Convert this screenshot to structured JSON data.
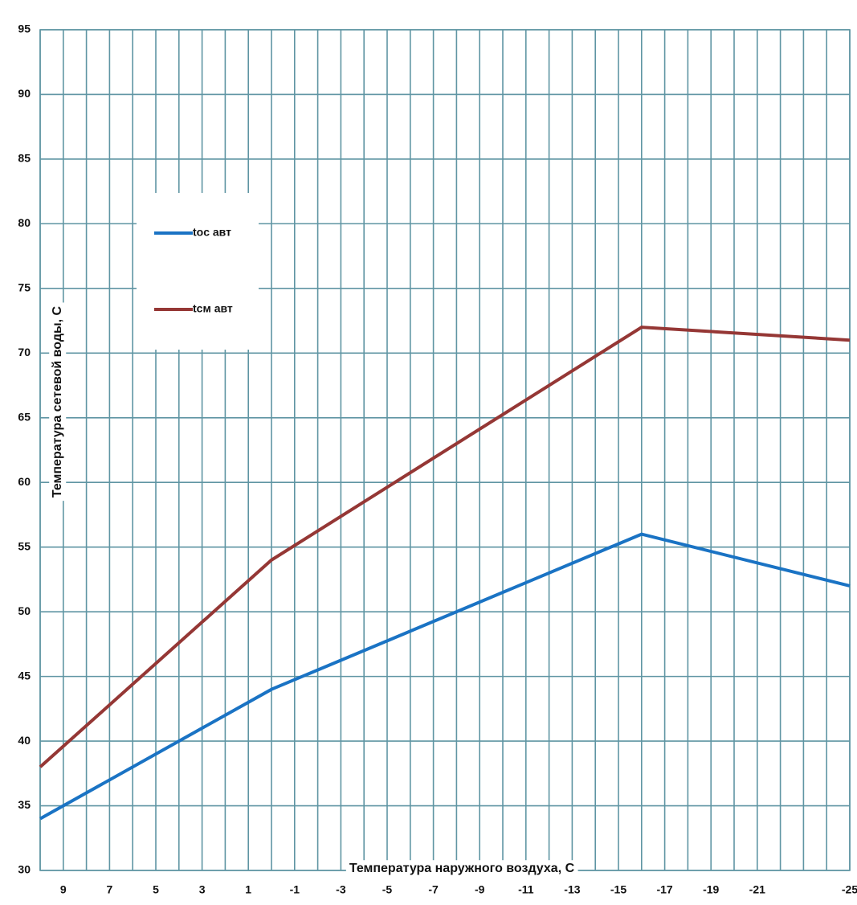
{
  "chart_data": {
    "type": "line",
    "xlabel": "Температура наружного воздуха, С",
    "ylabel": "Температура сетевой воды, С",
    "xlim": [
      10,
      -25
    ],
    "xticks": [
      9,
      7,
      5,
      3,
      1,
      -1,
      -3,
      -5,
      -7,
      -9,
      -11,
      -13,
      -15,
      -17,
      -19,
      -21,
      -25
    ],
    "xminor_ticks": [
      10,
      8,
      6,
      4,
      2,
      0,
      -2,
      -4,
      -6,
      -8,
      -10,
      -12,
      -14,
      -16,
      -18,
      -20,
      -22,
      -23,
      -24
    ],
    "ylim": [
      30,
      95
    ],
    "yticks": [
      30,
      35,
      40,
      45,
      50,
      55,
      60,
      65,
      70,
      75,
      80,
      85,
      90,
      95
    ],
    "grid": true,
    "x": [
      10,
      0,
      -16,
      -25
    ],
    "series": [
      {
        "name": "toc авт",
        "color": "#1a73c4",
        "values": [
          34,
          44,
          56,
          52
        ]
      },
      {
        "name": "tcм авт",
        "color": "#953735",
        "values": [
          38,
          54,
          72,
          71
        ]
      }
    ],
    "legend": "upper left"
  }
}
